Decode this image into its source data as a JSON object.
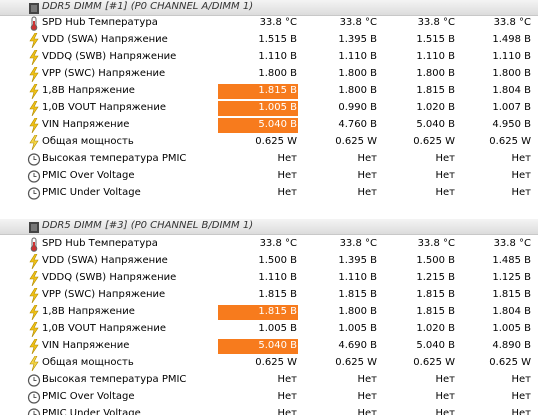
{
  "groups": [
    {
      "title": "DDR5 DIMM [#1] (P0 CHANNEL A/DIMM 1)",
      "rows": [
        {
          "label": "SPD Hub Температура",
          "values": [
            "33.8 °C",
            "33.8 °C",
            "33.8 °C",
            "33.8 °C"
          ]
        },
        {
          "label": "VDD (SWA) Напряжение",
          "values": [
            "1.515 В",
            "1.395 В",
            "1.515 В",
            "1.498 В"
          ]
        },
        {
          "label": "VDDQ (SWB) Напряжение",
          "values": [
            "1.110 В",
            "1.110 В",
            "1.110 В",
            "1.110 В"
          ]
        },
        {
          "label": "VPP (SWC) Напряжение",
          "values": [
            "1.800 В",
            "1.800 В",
            "1.800 В",
            "1.800 В"
          ]
        },
        {
          "label": "1,8В Напряжение",
          "values": [
            "1.815 В",
            "1.800 В",
            "1.815 В",
            "1.804 В"
          ]
        },
        {
          "label": "1,0В VOUT Напряжение",
          "values": [
            "1.005 В",
            "0.990 В",
            "1.020 В",
            "1.007 В"
          ]
        },
        {
          "label": "VIN Напряжение",
          "values": [
            "5.040 В",
            "4.760 В",
            "5.040 В",
            "4.950 В"
          ]
        },
        {
          "label": "Общая мощность",
          "values": [
            "0.625 W",
            "0.625 W",
            "0.625 W",
            "0.625 W"
          ]
        },
        {
          "label": "Высокая температура PMIC",
          "values": [
            "Нет",
            "Нет",
            "Нет",
            "Нет"
          ]
        },
        {
          "label": "PMIC Over Voltage",
          "values": [
            "Нет",
            "Нет",
            "Нет",
            "Нет"
          ]
        },
        {
          "label": "PMIC Under Voltage",
          "values": [
            "Нет",
            "Нет",
            "Нет",
            "Нет"
          ]
        }
      ]
    },
    {
      "title": "DDR5 DIMM [#3] (P0 CHANNEL B/DIMM 1)",
      "rows": [
        {
          "label": "SPD Hub Температура",
          "values": [
            "33.8 °C",
            "33.8 °C",
            "33.8 °C",
            "33.8 °C"
          ]
        },
        {
          "label": "VDD (SWA) Напряжение",
          "values": [
            "1.500 В",
            "1.395 В",
            "1.500 В",
            "1.485 В"
          ]
        },
        {
          "label": "VDDQ (SWB) Напряжение",
          "values": [
            "1.110 В",
            "1.110 В",
            "1.215 В",
            "1.125 В"
          ]
        },
        {
          "label": "VPP (SWC) Напряжение",
          "values": [
            "1.815 В",
            "1.815 В",
            "1.815 В",
            "1.815 В"
          ]
        },
        {
          "label": "1,8В Напряжение",
          "values": [
            "1.815 В",
            "1.800 В",
            "1.815 В",
            "1.804 В"
          ]
        },
        {
          "label": "1,0В VOUT Напряжение",
          "values": [
            "1.005 В",
            "1.005 В",
            "1.020 В",
            "1.005 В"
          ]
        },
        {
          "label": "VIN Напряжение",
          "values": [
            "5.040 В",
            "4.690 В",
            "5.040 В",
            "4.890 В"
          ]
        },
        {
          "label": "Общая мощность",
          "values": [
            "0.625 W",
            "0.625 W",
            "0.625 W",
            "0.625 W"
          ]
        },
        {
          "label": "Высокая температура PMIC",
          "values": [
            "Нет",
            "Нет",
            "Нет",
            "Нет"
          ]
        },
        {
          "label": "PMIC Over Voltage",
          "values": [
            "Нет",
            "Нет",
            "Нет",
            "Нет"
          ]
        },
        {
          "label": "PMIC Under Voltage",
          "values": [
            "Нет",
            "Нет",
            "Нет",
            "Нет"
          ]
        }
      ]
    }
  ]
}
